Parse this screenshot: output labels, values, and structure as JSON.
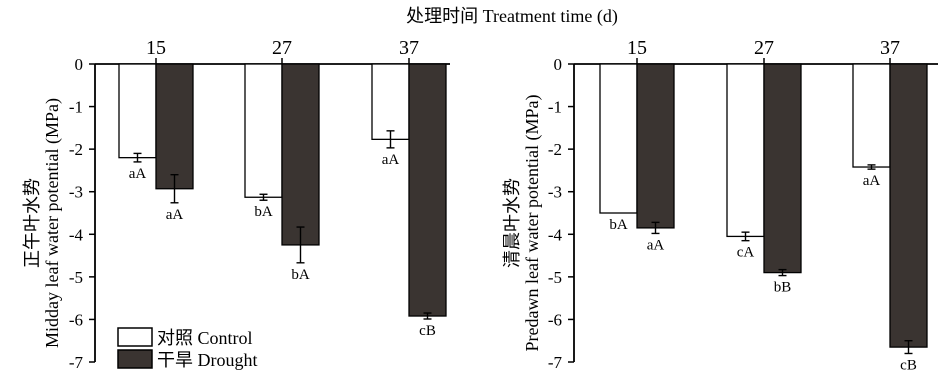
{
  "chart_data": {
    "top_title": "处理时间 Treatment time (d)",
    "legend": [
      {
        "label": "对照 Control",
        "color": "#ffffff"
      },
      {
        "label": "干旱 Drought",
        "color": "#3a3431"
      }
    ],
    "panels": [
      {
        "type": "bar",
        "ylabel_cn": "正午叶水势",
        "ylabel_en": "Midday leaf water potential (MPa)",
        "ylim": [
          -7,
          0
        ],
        "yticks": [
          "0",
          "-1",
          "-2",
          "-3",
          "-4",
          "-5",
          "-6",
          "-7"
        ],
        "categories": [
          "15",
          "27",
          "37"
        ],
        "series": [
          {
            "name": "对照 Control",
            "color": "#ffffff",
            "values": [
              -2.2,
              -3.13,
              -1.77
            ],
            "errors": [
              0.1,
              0.07,
              0.2
            ],
            "labels": [
              "aA",
              "bA",
              "aA"
            ]
          },
          {
            "name": "干旱 Drought",
            "color": "#3a3431",
            "values": [
              -2.93,
              -4.25,
              -5.92
            ],
            "errors": [
              0.33,
              0.42,
              0.07
            ],
            "labels": [
              "aA",
              "bA",
              "cB"
            ]
          }
        ]
      },
      {
        "type": "bar",
        "ylabel_cn": "清晨叶水势",
        "ylabel_en": "Predawn leaf water potential (MPa)",
        "ylim": [
          -7,
          0
        ],
        "yticks": [
          "0",
          "-1",
          "-2",
          "-3",
          "-4",
          "-5",
          "-6",
          "-7"
        ],
        "categories": [
          "15",
          "27",
          "37"
        ],
        "series": [
          {
            "name": "对照 Control",
            "color": "#ffffff",
            "values": [
              -3.5,
              -4.05,
              -2.42
            ],
            "errors": [
              0.0,
              0.1,
              0.05
            ],
            "labels": [
              "bA",
              "cA",
              "aA"
            ]
          },
          {
            "name": "干旱 Drought",
            "color": "#3a3431",
            "values": [
              -3.85,
              -4.9,
              -6.65
            ],
            "errors": [
              0.13,
              0.07,
              0.15
            ],
            "labels": [
              "aA",
              "bB",
              "cB"
            ]
          }
        ]
      }
    ]
  }
}
